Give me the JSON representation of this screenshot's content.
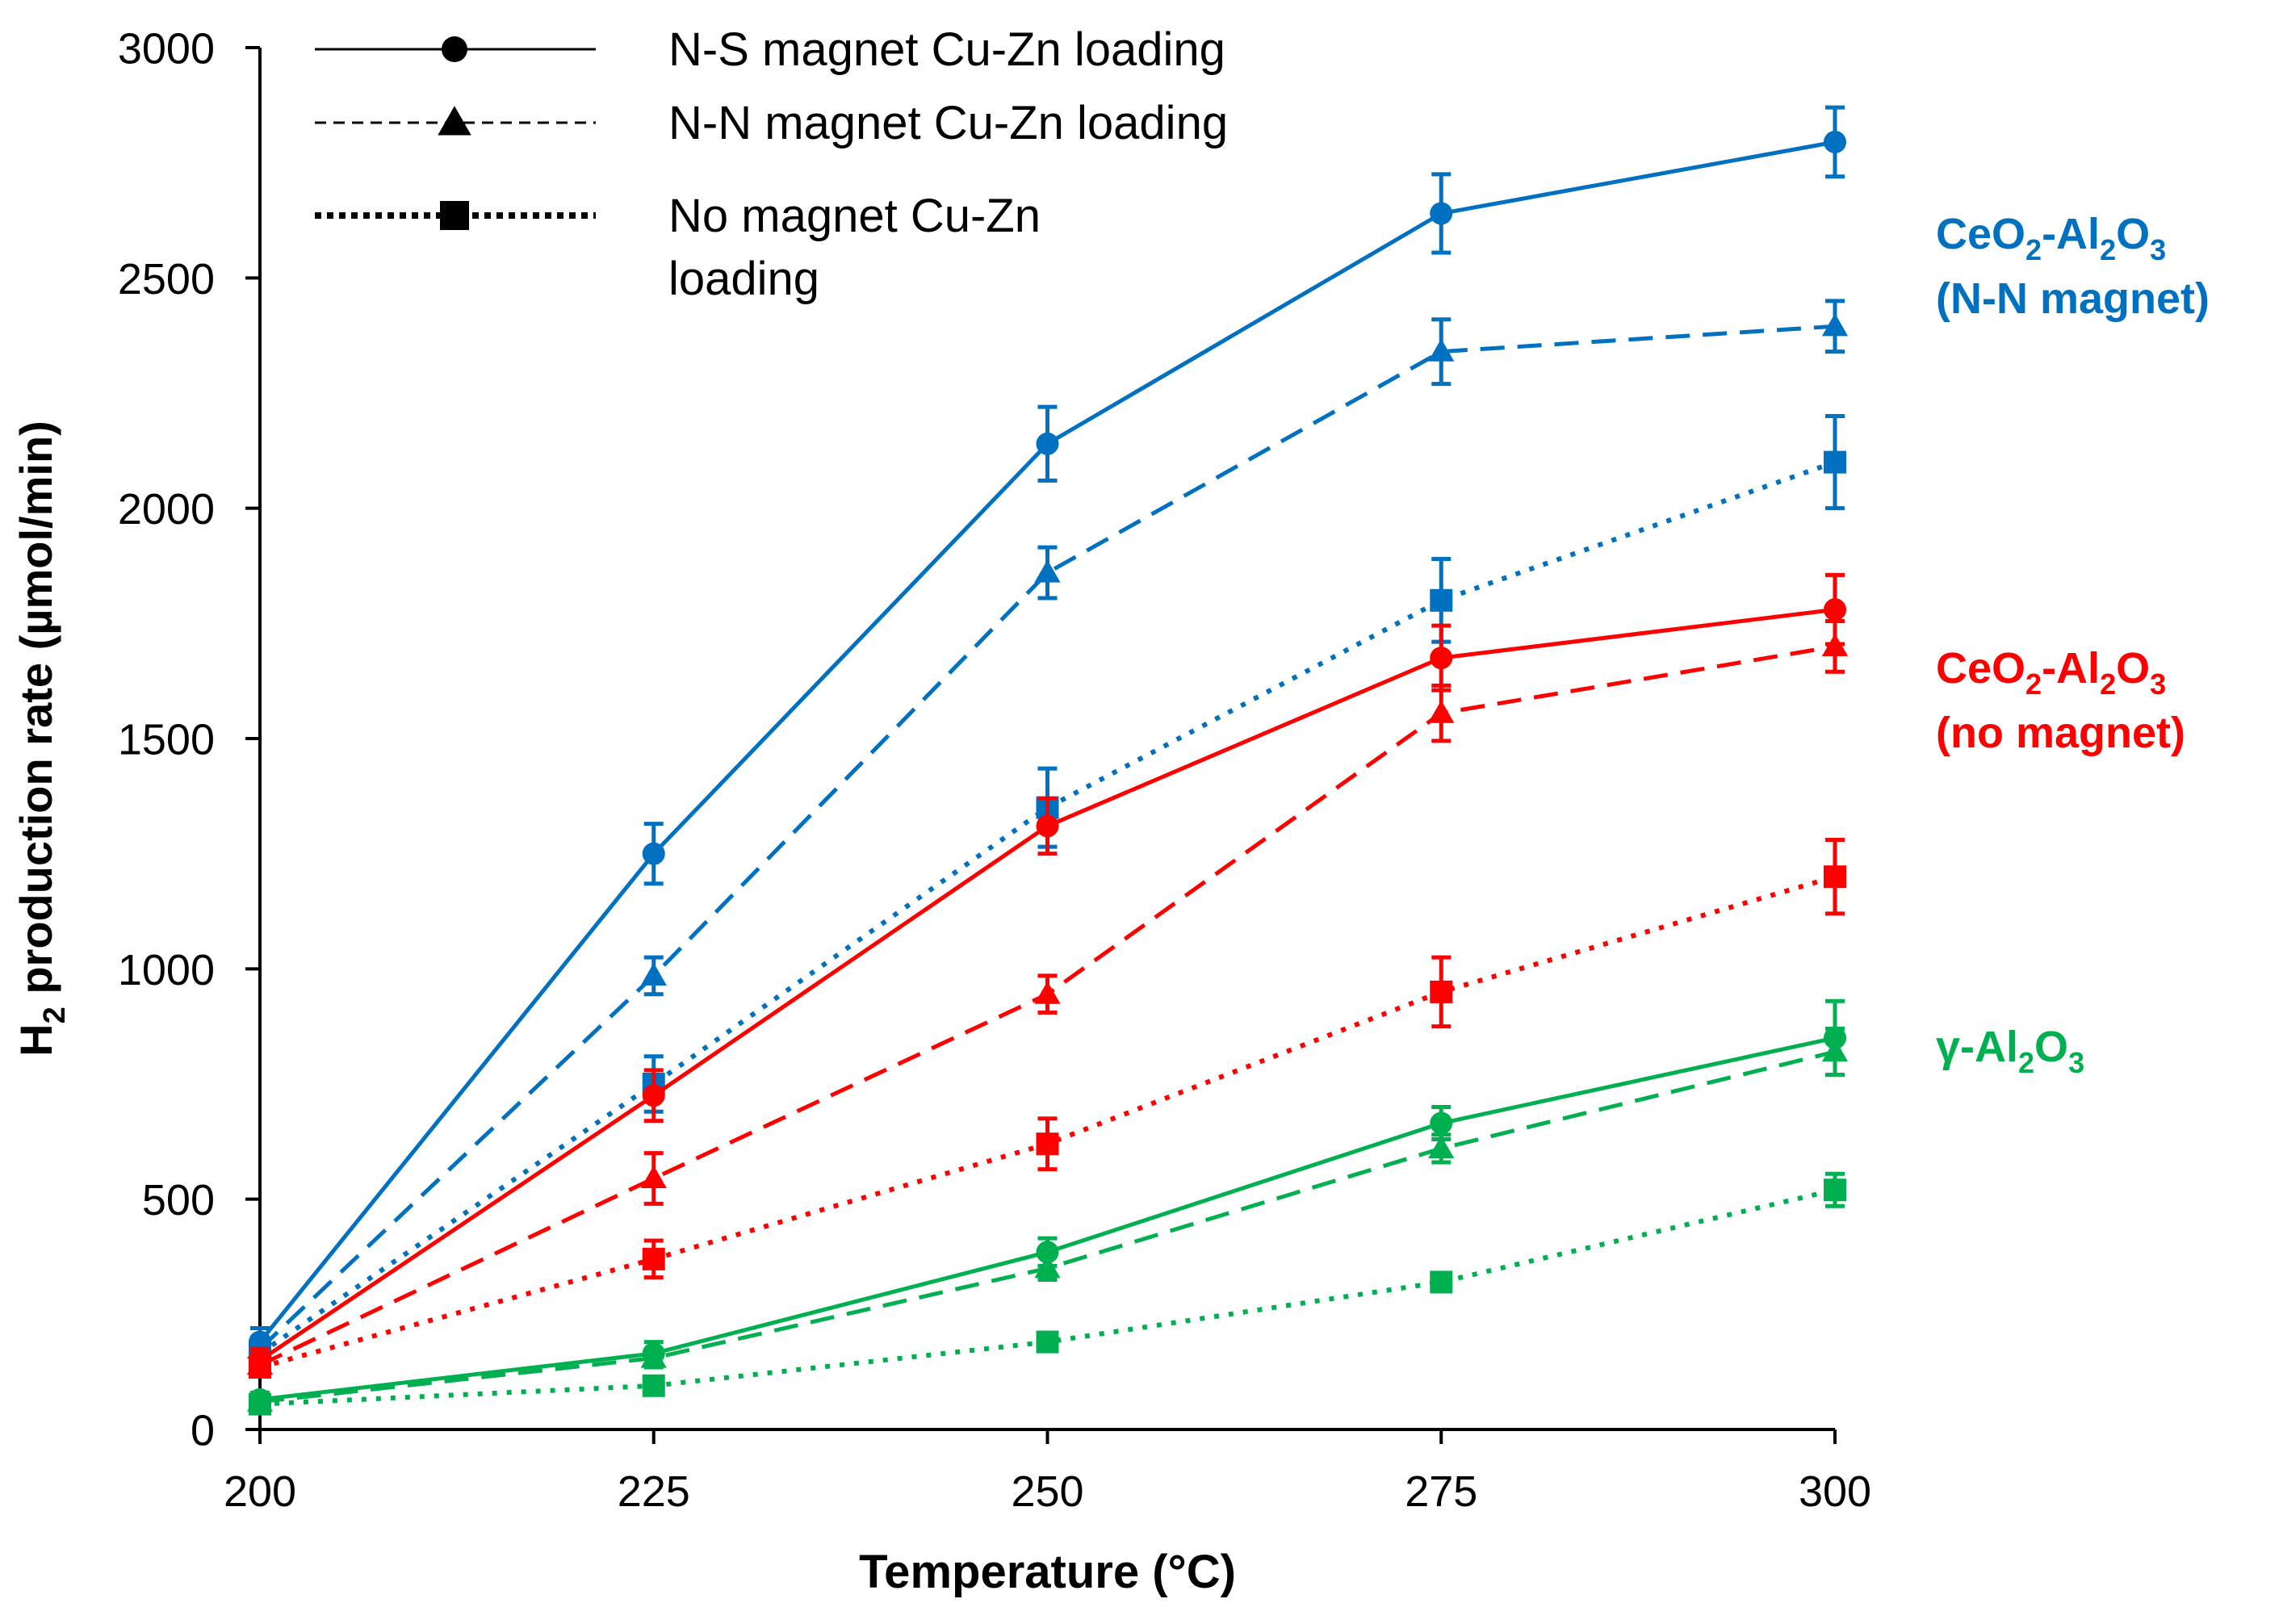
{
  "chart_data": {
    "type": "line",
    "title": "",
    "xlabel": "Temperature (°C)",
    "ylabel": {
      "prefix": "H",
      "sub": "2",
      "rest": " production rate (µmol/min)"
    },
    "x": [
      200,
      225,
      250,
      275,
      300
    ],
    "xticks": [
      "200",
      "225",
      "250",
      "275",
      "300"
    ],
    "ylim": [
      0,
      3000
    ],
    "yticks": [
      "0",
      "500",
      "1000",
      "1500",
      "2000",
      "2500",
      "3000"
    ],
    "grid": false,
    "legend": {
      "placement": "top-left",
      "entries": [
        {
          "lines": [
            "N-S magnet Cu-Zn loading"
          ],
          "style": "solid",
          "marker": "circle"
        },
        {
          "lines": [
            "N-N magnet Cu-Zn loading"
          ],
          "style": "dashed",
          "marker": "triangle"
        },
        {
          "lines": [
            "No magnet Cu-Zn",
            "loading"
          ],
          "style": "dotted",
          "marker": "square"
        }
      ]
    },
    "groups": [
      {
        "id": "blue",
        "color": "#0070C0",
        "label": [
          {
            "parts": [
              [
                "CeO",
                ""
              ],
              [
                "2",
                "sub"
              ],
              [
                "-Al",
                ""
              ],
              [
                "2",
                "sub"
              ],
              [
                "O",
                ""
              ],
              [
                "3",
                "sub"
              ]
            ]
          },
          {
            "parts": [
              [
                "(N-N magnet)",
                ""
              ]
            ]
          }
        ]
      },
      {
        "id": "red",
        "color": "#FF0000",
        "label": [
          {
            "parts": [
              [
                "CeO",
                ""
              ],
              [
                "2",
                "sub"
              ],
              [
                "-Al",
                ""
              ],
              [
                "2",
                "sub"
              ],
              [
                "O",
                ""
              ],
              [
                "3",
                "sub"
              ]
            ]
          },
          {
            "parts": [
              [
                "(no magnet)",
                ""
              ]
            ]
          }
        ]
      },
      {
        "id": "green",
        "color": "#00B050",
        "label": [
          {
            "parts": [
              [
                "γ-Al",
                ""
              ],
              [
                "2",
                "sub"
              ],
              [
                "O",
                ""
              ],
              [
                "3",
                "sub"
              ]
            ]
          }
        ]
      }
    ],
    "series": [
      {
        "name": "CeO2-Al2O3 (N-N magnet), N-S magnet Cu-Zn loading",
        "group": "blue",
        "style": "solid",
        "marker": "circle",
        "values": [
          190,
          1250,
          2140,
          2640,
          2795
        ],
        "errors": [
          30,
          65,
          80,
          85,
          75
        ]
      },
      {
        "name": "CeO2-Al2O3 (N-N magnet), N-N magnet Cu-Zn loading",
        "group": "blue",
        "style": "dashed",
        "marker": "triangle",
        "values": [
          175,
          985,
          1860,
          2340,
          2395
        ],
        "errors": [
          25,
          40,
          55,
          70,
          55
        ]
      },
      {
        "name": "CeO2-Al2O3 (N-N magnet), No magnet Cu-Zn loading",
        "group": "blue",
        "style": "dotted",
        "marker": "square",
        "values": [
          165,
          750,
          1350,
          1800,
          2100
        ],
        "errors": [
          25,
          60,
          85,
          90,
          100
        ]
      },
      {
        "name": "CeO2-Al2O3 (no magnet), N-S magnet Cu-Zn loading",
        "group": "red",
        "style": "solid",
        "marker": "circle",
        "values": [
          150,
          725,
          1310,
          1675,
          1780
        ],
        "errors": [
          25,
          55,
          60,
          70,
          75
        ]
      },
      {
        "name": "CeO2-Al2O3 (no magnet), N-N magnet Cu-Zn loading",
        "group": "red",
        "style": "dashed",
        "marker": "triangle",
        "values": [
          140,
          545,
          945,
          1555,
          1700
        ],
        "errors": [
          25,
          55,
          40,
          60,
          55
        ]
      },
      {
        "name": "CeO2-Al2O3 (no magnet), No magnet Cu-Zn loading",
        "group": "red",
        "style": "dotted",
        "marker": "square",
        "values": [
          135,
          370,
          620,
          950,
          1200
        ],
        "errors": [
          20,
          40,
          55,
          75,
          80
        ]
      },
      {
        "name": "γ-Al2O3, N-S magnet Cu-Zn loading",
        "group": "green",
        "style": "solid",
        "marker": "circle",
        "values": [
          65,
          165,
          385,
          665,
          850
        ],
        "errors": [
          15,
          25,
          30,
          35,
          80
        ]
      },
      {
        "name": "γ-Al2O3, N-N magnet Cu-Zn loading",
        "group": "green",
        "style": "dashed",
        "marker": "triangle",
        "values": [
          60,
          155,
          350,
          610,
          820
        ],
        "errors": [
          15,
          20,
          25,
          30,
          50
        ]
      },
      {
        "name": "γ-Al2O3, No magnet Cu-Zn loading",
        "group": "green",
        "style": "dotted",
        "marker": "square",
        "values": [
          55,
          95,
          190,
          320,
          520
        ],
        "errors": [
          10,
          15,
          20,
          20,
          35
        ]
      }
    ]
  }
}
